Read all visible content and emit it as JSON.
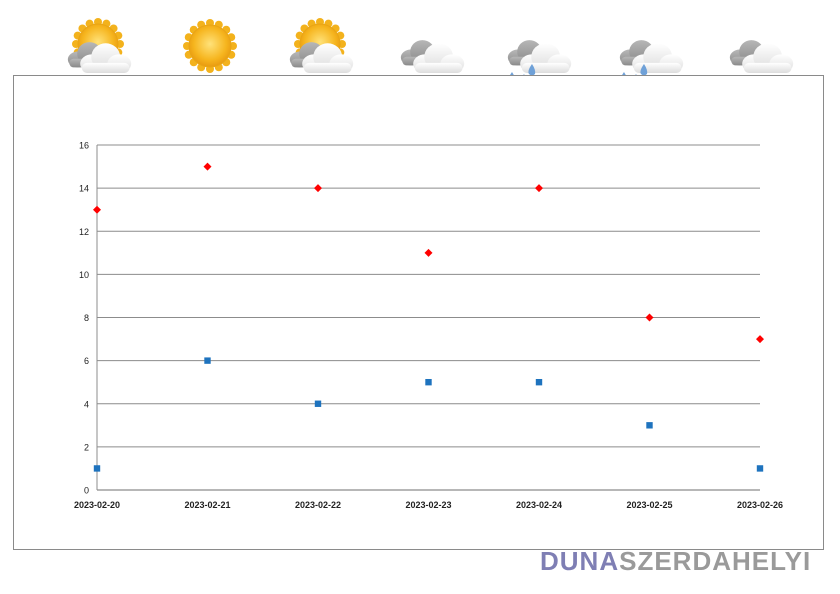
{
  "weather_icons": [
    "partly-sunny-icon",
    "sunny-icon",
    "partly-sunny-icon",
    "cloudy-icon",
    "rain-icon",
    "rain-icon",
    "cloudy-icon"
  ],
  "colors": {
    "series_high": "#ff0000",
    "series_low": "#1e73be",
    "grid": "#8c8c8c",
    "logo_primary": "#7f7fb4",
    "logo_secondary": "#9a9a9a"
  },
  "logo": {
    "part1": "DUNA",
    "part2": "SZERDAHELYI"
  },
  "chart_data": {
    "type": "scatter",
    "categories": [
      "2023-02-20",
      "2023-02-21",
      "2023-02-22",
      "2023-02-23",
      "2023-02-24",
      "2023-02-25",
      "2023-02-26"
    ],
    "series": [
      {
        "marker": "diamond",
        "color": "#ff0000",
        "values": [
          13,
          15,
          14,
          11,
          14,
          8,
          7
        ]
      },
      {
        "marker": "square",
        "color": "#1e73be",
        "values": [
          1,
          6,
          4,
          5,
          5,
          3,
          1
        ]
      }
    ],
    "yticks": [
      0,
      2,
      4,
      6,
      8,
      10,
      12,
      14,
      16
    ],
    "ylim": [
      0,
      16
    ],
    "grid": true,
    "title": "",
    "xlabel": "",
    "ylabel": ""
  }
}
